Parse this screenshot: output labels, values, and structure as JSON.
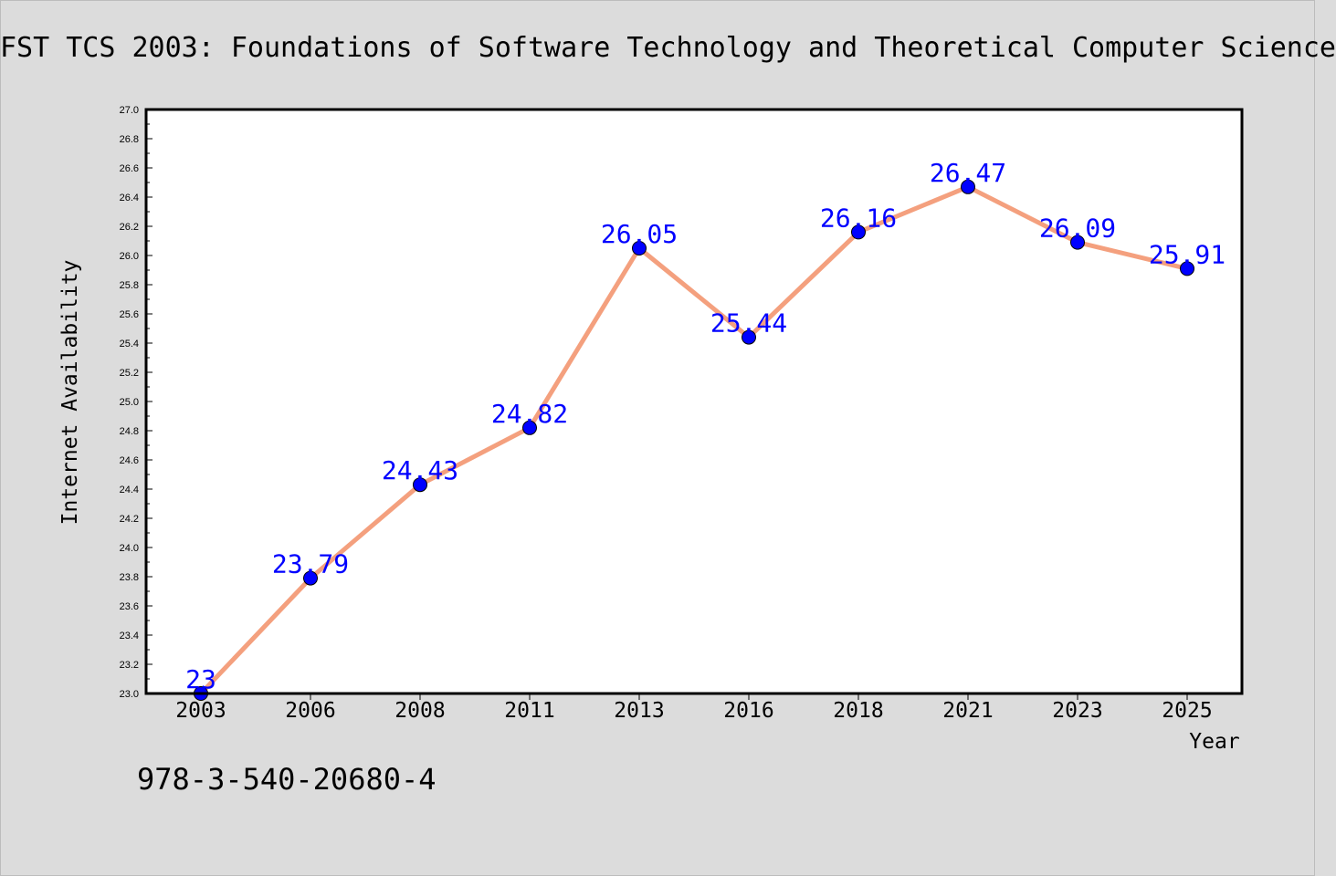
{
  "chart_data": {
    "type": "line",
    "title": "FST TCS 2003: Foundations of Software Technology and Theoretical Computer Science",
    "xlabel": "Year",
    "ylabel": "Internet Availability",
    "categories": [
      "2003",
      "2006",
      "2008",
      "2011",
      "2013",
      "2016",
      "2018",
      "2021",
      "2023",
      "2025"
    ],
    "series": [
      {
        "values": [
          23,
          23.79,
          24.43,
          24.82,
          26.05,
          25.44,
          26.16,
          26.47,
          26.09,
          25.91
        ],
        "data_labels": [
          "23",
          "23.79",
          "24.43",
          "24.82",
          "26.05",
          "25.44",
          "26.16",
          "26.47",
          "26.09",
          "25.91"
        ],
        "line_color": "#f4a07e",
        "marker_color": "#0000ff"
      }
    ],
    "ylim": [
      23.0,
      27.0
    ],
    "y_ticks": [
      "23.0",
      "23.2",
      "23.4",
      "23.6",
      "23.8",
      "24.0",
      "24.2",
      "24.4",
      "24.6",
      "24.8",
      "25.0",
      "25.2",
      "25.4",
      "25.6",
      "25.8",
      "26.0",
      "26.2",
      "26.4",
      "26.6",
      "26.8",
      "27.0"
    ],
    "grid": false,
    "legend": "none",
    "label_color": "#0000ff",
    "background": "#dcdcdc",
    "plot_background": "#ffffff"
  },
  "footer": {
    "isbn": "978-3-540-20680-4"
  }
}
